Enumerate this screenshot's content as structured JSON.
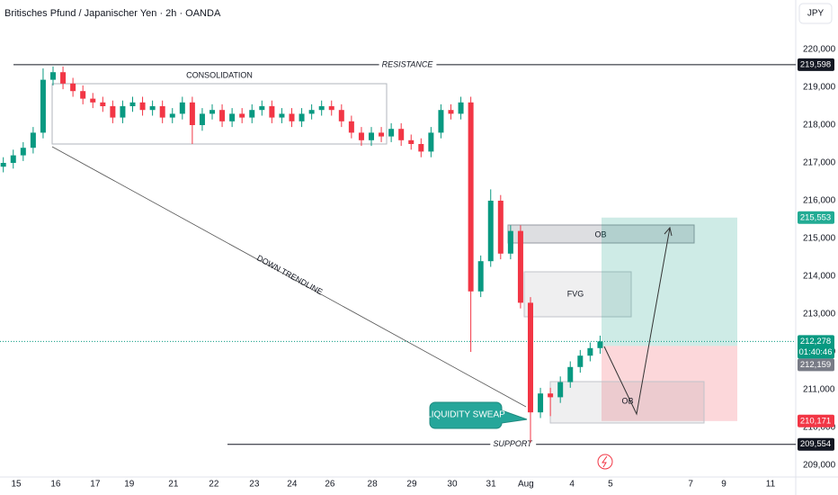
{
  "chart_data": {
    "type": "candlestick",
    "title": "Britisches Pfund / Japanischer Yen · 2h · OANDA",
    "currency": "JPY",
    "up_color": "#089981",
    "down_color": "#f23645",
    "xlim": [
      0,
      240
    ],
    "ylim": [
      208.69,
      221.31
    ],
    "yticks": [
      {
        "value": 209,
        "label": "209,000"
      },
      {
        "value": 210,
        "label": "210,000"
      },
      {
        "value": 211,
        "label": "211,000"
      },
      {
        "value": 212,
        "label": "212,000"
      },
      {
        "value": 213,
        "label": "213,000"
      },
      {
        "value": 214,
        "label": "214,000"
      },
      {
        "value": 215,
        "label": "215,000"
      },
      {
        "value": 216,
        "label": "216,000"
      },
      {
        "value": 217,
        "label": "217,000"
      },
      {
        "value": 218,
        "label": "218,000"
      },
      {
        "value": 219,
        "label": "219,000"
      },
      {
        "value": 220,
        "label": "220,000"
      }
    ],
    "xticks": [
      {
        "value": 4.9,
        "label": "15"
      },
      {
        "value": 16.8,
        "label": "16"
      },
      {
        "value": 28.7,
        "label": "17"
      },
      {
        "value": 39,
        "label": "19"
      },
      {
        "value": 52.3,
        "label": "21"
      },
      {
        "value": 64.5,
        "label": "22"
      },
      {
        "value": 76.7,
        "label": "23"
      },
      {
        "value": 88.1,
        "label": "24"
      },
      {
        "value": 99.5,
        "label": "26"
      },
      {
        "value": 112.3,
        "label": "28"
      },
      {
        "value": 124.2,
        "label": "29"
      },
      {
        "value": 136.4,
        "label": "30"
      },
      {
        "value": 148.1,
        "label": "31"
      },
      {
        "value": 158.6,
        "label": "Aug"
      },
      {
        "value": 172.5,
        "label": "4"
      },
      {
        "value": 184.1,
        "label": "5"
      },
      {
        "value": 208.3,
        "label": "7"
      },
      {
        "value": 218.3,
        "label": "9"
      },
      {
        "value": 232.4,
        "label": "11"
      }
    ],
    "x": [
      1,
      4,
      7,
      10,
      13,
      16,
      19,
      22,
      25,
      28,
      31,
      34,
      37,
      40,
      43,
      46,
      49,
      52,
      55,
      58,
      61,
      64,
      67,
      70,
      73,
      76,
      79,
      82,
      85,
      88,
      91,
      94,
      97,
      100,
      103,
      106,
      109,
      112,
      115,
      118,
      121,
      124,
      127,
      130,
      133,
      136,
      139,
      142,
      145,
      148,
      151,
      154,
      157,
      160,
      163,
      166,
      169,
      172,
      175,
      178,
      181
    ],
    "open": [
      216.9,
      217.0,
      217.2,
      217.4,
      217.8,
      219.2,
      219.4,
      219.1,
      218.9,
      218.7,
      218.6,
      218.5,
      218.2,
      218.5,
      218.6,
      218.4,
      218.5,
      218.2,
      218.3,
      218.6,
      218.0,
      218.3,
      218.4,
      218.1,
      218.3,
      218.2,
      218.4,
      218.5,
      218.2,
      218.3,
      218.1,
      218.3,
      218.4,
      218.5,
      218.4,
      218.1,
      217.8,
      217.6,
      217.8,
      217.7,
      217.9,
      217.6,
      217.5,
      217.3,
      217.8,
      218.4,
      218.3,
      218.6,
      213.6,
      214.4,
      216.0,
      214.6,
      215.2,
      213.3,
      210.4,
      210.9,
      210.8,
      211.2,
      211.6,
      211.9,
      212.1
    ],
    "high": [
      217.15,
      217.35,
      217.55,
      217.95,
      219.5,
      219.55,
      219.55,
      219.25,
      219.05,
      218.85,
      218.75,
      218.65,
      218.65,
      218.75,
      218.75,
      218.65,
      218.65,
      218.45,
      218.75,
      218.75,
      218.45,
      218.55,
      218.55,
      218.45,
      218.45,
      218.55,
      218.65,
      218.65,
      218.45,
      218.45,
      218.45,
      218.55,
      218.65,
      218.65,
      218.55,
      218.25,
      217.95,
      217.95,
      217.95,
      218.05,
      218.05,
      217.75,
      217.65,
      217.95,
      218.55,
      218.55,
      218.75,
      218.75,
      214.55,
      216.3,
      216.15,
      215.35,
      215.35,
      213.45,
      211.05,
      211.05,
      211.35,
      211.75,
      212.05,
      212.25,
      212.43
    ],
    "low": [
      216.75,
      216.85,
      217.05,
      217.25,
      217.65,
      219.05,
      218.95,
      218.75,
      218.55,
      218.45,
      218.35,
      218.05,
      218.05,
      218.35,
      218.25,
      218.25,
      218.05,
      218.05,
      218.15,
      217.5,
      217.85,
      218.15,
      217.95,
      217.95,
      218.05,
      218.05,
      218.25,
      218.05,
      218.05,
      217.95,
      217.95,
      218.15,
      218.25,
      218.25,
      217.95,
      217.65,
      217.45,
      217.45,
      217.55,
      217.55,
      217.45,
      217.35,
      217.15,
      217.15,
      217.65,
      218.15,
      218.15,
      212.0,
      213.45,
      214.25,
      214.45,
      214.45,
      213.15,
      209.6,
      210.25,
      210.3,
      210.65,
      211.05,
      211.45,
      211.75,
      211.95
    ],
    "close": [
      217.0,
      217.2,
      217.4,
      217.8,
      219.2,
      219.4,
      219.1,
      218.9,
      218.7,
      218.6,
      218.5,
      218.2,
      218.5,
      218.6,
      218.4,
      218.5,
      218.2,
      218.3,
      218.6,
      218.0,
      218.3,
      218.4,
      218.1,
      218.3,
      218.2,
      218.4,
      218.5,
      218.2,
      218.3,
      218.1,
      218.3,
      218.4,
      218.5,
      218.4,
      218.1,
      217.8,
      217.6,
      217.8,
      217.7,
      217.9,
      217.6,
      217.5,
      217.3,
      217.8,
      218.4,
      218.3,
      218.6,
      213.6,
      214.4,
      216.0,
      214.6,
      215.2,
      213.3,
      210.4,
      210.9,
      210.8,
      211.2,
      211.6,
      211.9,
      212.1,
      212.278
    ],
    "resistance": {
      "name": "RESISTANCE",
      "price": {
        "value": 219.598,
        "label": "219,598"
      }
    },
    "support": {
      "name": "SUPPORT",
      "price": {
        "value": 209.554,
        "label": "209,554"
      }
    },
    "target": {
      "value": 215.553,
      "label": "215,553"
    },
    "last_price": {
      "value": 212.278,
      "label": "212,278"
    },
    "countdown": "01:40:46",
    "entry": {
      "value": 212.159,
      "label": "212,159"
    },
    "stop": {
      "value": 210.171,
      "label": "210,171"
    },
    "annotations": {
      "consolidation": "CONSOLIDATION",
      "trendline": "DOWN TRENDLINE",
      "ob_upper": "OB",
      "fvg": "FVG",
      "ob_lower": "OB",
      "sweep": "LIQUIDITY SWEAP"
    }
  }
}
